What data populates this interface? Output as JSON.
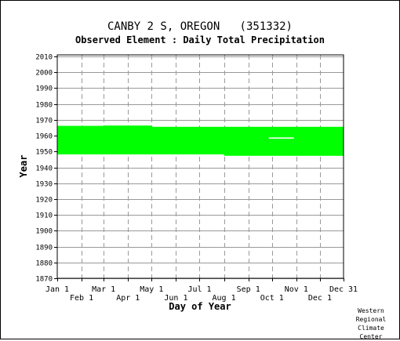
{
  "header": {
    "station": "CANBY 2 S, OREGON   (351332)",
    "element": "Observed Element : Daily Total Precipitation"
  },
  "credit": [
    "Western",
    "Regional",
    "Climate",
    "Center"
  ],
  "colors": {
    "data": "#00ff00",
    "grid": "#999999",
    "axis": "#000000",
    "background": "#ffffff"
  },
  "chart_data": {
    "type": "heatmap",
    "title": "CANBY 2 S, OREGON   (351332)",
    "subtitle": "Observed Element : Daily Total Precipitation",
    "xlabel": "Day of Year",
    "ylabel": "Year",
    "xlim": [
      1,
      365
    ],
    "ylim": [
      1870,
      2011
    ],
    "x_ticks_top_row": [
      {
        "label": "Jan 1",
        "day": 1
      },
      {
        "label": "Mar 1",
        "day": 60
      },
      {
        "label": "May 1",
        "day": 121
      },
      {
        "label": "Jul 1",
        "day": 182
      },
      {
        "label": "Sep 1",
        "day": 244
      },
      {
        "label": "Nov 1",
        "day": 305
      },
      {
        "label": "Dec 31",
        "day": 365
      }
    ],
    "x_ticks_bottom_row": [
      {
        "label": "Feb 1",
        "day": 32
      },
      {
        "label": "Apr 1",
        "day": 91
      },
      {
        "label": "Jun 1",
        "day": 152
      },
      {
        "label": "Aug 1",
        "day": 213
      },
      {
        "label": "Oct 1",
        "day": 274
      },
      {
        "label": "Dec 1",
        "day": 335
      }
    ],
    "y_ticks": [
      1870,
      1880,
      1890,
      1900,
      1910,
      1920,
      1930,
      1940,
      1950,
      1960,
      1970,
      1980,
      1990,
      2000,
      2010
    ],
    "grid": true,
    "series": [
      {
        "blocks": [
          {
            "day_start": 1,
            "day_end": 31,
            "year_start": 1948.2,
            "year_end": 1966.2
          },
          {
            "day_start": 31,
            "day_end": 60,
            "year_start": 1948.2,
            "year_end": 1966.2
          },
          {
            "day_start": 60,
            "day_end": 121,
            "year_start": 1948.2,
            "year_end": 1966.4
          },
          {
            "day_start": 121,
            "day_end": 213,
            "year_start": 1948.2,
            "year_end": 1965.6
          },
          {
            "day_start": 213,
            "day_end": 365,
            "year_start": 1947.3,
            "year_end": 1965.6
          }
        ],
        "gaps": [
          {
            "day_start": 270,
            "day_end": 302,
            "year": 1958.5
          }
        ]
      }
    ]
  }
}
